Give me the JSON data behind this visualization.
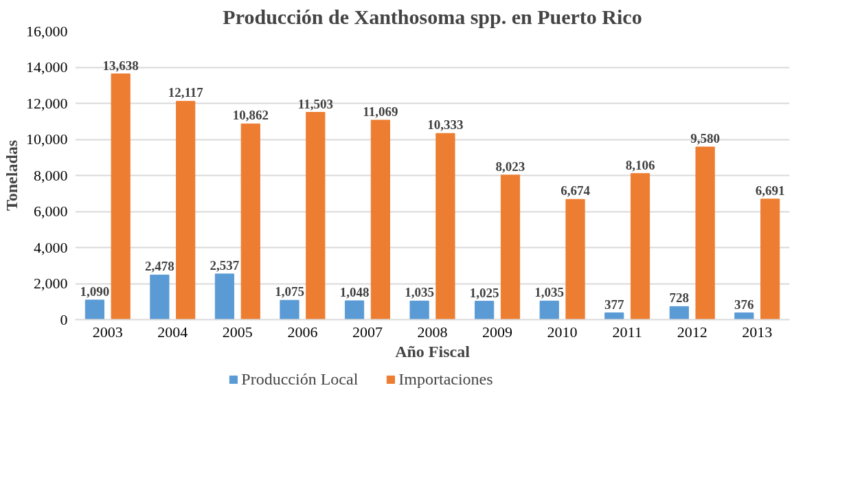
{
  "chart_data": {
    "type": "bar",
    "title": "Producción de Xanthosoma spp. en Puerto Rico",
    "xlabel": "Año Fiscal",
    "ylabel": "Toneladas",
    "categories": [
      "2003",
      "2004",
      "2005",
      "2006",
      "2007",
      "2008",
      "2009",
      "2010",
      "2011",
      "2012",
      "2013"
    ],
    "series": [
      {
        "name": "Producción Local",
        "color": "#5b9bd5",
        "values": [
          1090,
          2478,
          2537,
          1075,
          1048,
          1035,
          1025,
          1035,
          377,
          728,
          376
        ],
        "value_labels": [
          "1,090",
          "2,478",
          "2,537",
          "1,075",
          "1,048",
          "1,035",
          "1,025",
          "1,035",
          "377",
          "728",
          "376"
        ]
      },
      {
        "name": "Importaciones",
        "color": "#ed7d31",
        "values": [
          13638,
          12117,
          10862,
          11503,
          11069,
          10333,
          8023,
          6674,
          8106,
          9580,
          6691
        ],
        "value_labels": [
          "13,638",
          "12,117",
          "10,862",
          "11,503",
          "11,069",
          "10,333",
          "8,023",
          "6,674",
          "8,106",
          "9,580",
          "6,691"
        ]
      }
    ],
    "ylim": [
      0,
      16000
    ],
    "yticks": [
      {
        "value": 0,
        "label": "0"
      },
      {
        "value": 2000,
        "label": "2,000"
      },
      {
        "value": 4000,
        "label": "4,000"
      },
      {
        "value": 6000,
        "label": "6,000"
      },
      {
        "value": 8000,
        "label": "8,000"
      },
      {
        "value": 10000,
        "label": "10,000"
      },
      {
        "value": 12000,
        "label": "12,000"
      },
      {
        "value": 14000,
        "label": "14,000"
      },
      {
        "value": 16000,
        "label": "16,000"
      }
    ],
    "grid": "y",
    "legend": "bottom"
  }
}
